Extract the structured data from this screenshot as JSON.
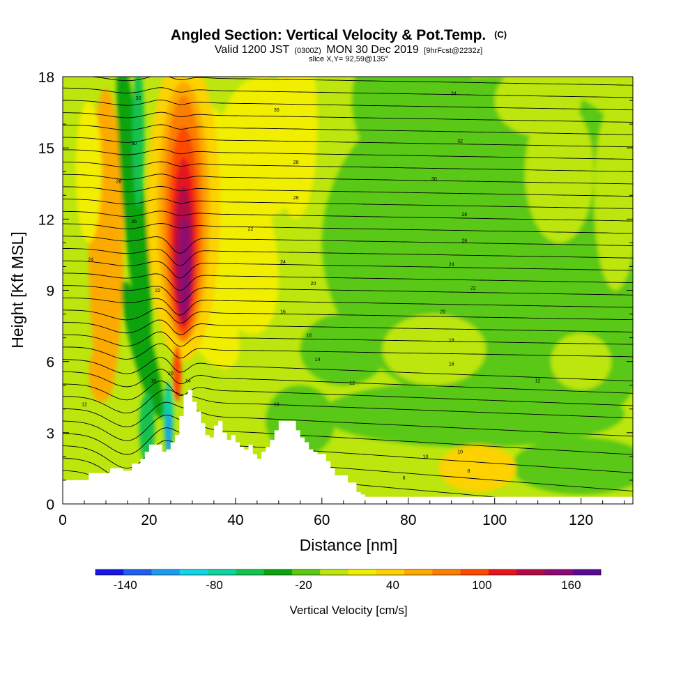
{
  "header": {
    "title": "Angled Section: Vertical Velocity & Pot.Temp.",
    "title_mark": "(C)",
    "valid_prefix": "Valid 1200 JST",
    "valid_utc": "(0300Z)",
    "valid_date": "MON 30 Dec 2019",
    "forecast": "[9hrFcst@2232z]",
    "slice": "slice X,Y= 92,59@135°"
  },
  "chart_data": {
    "type": "heatmap",
    "xlabel": "Distance [nm]",
    "ylabel": "Height [Kft MSL]",
    "xlim": [
      0,
      132
    ],
    "ylim": [
      0,
      18
    ],
    "x_ticks": [
      0,
      20,
      40,
      60,
      80,
      100,
      120
    ],
    "y_ticks": [
      0,
      3,
      6,
      9,
      12,
      15,
      18
    ],
    "colorbar": {
      "label": "Vertical Velocity [cm/s]",
      "tick_labels": [
        "-140",
        "-80",
        "-20",
        "40",
        "100",
        "160"
      ],
      "tick_values": [
        -140,
        -80,
        -20,
        40,
        100,
        160
      ],
      "bins": [
        -160,
        -140,
        -120,
        -100,
        -80,
        -60,
        -40,
        -20,
        0,
        20,
        40,
        60,
        80,
        100,
        120,
        140,
        160,
        180
      ],
      "colors": [
        "#1616e6",
        "#1f5ef0",
        "#1c9ced",
        "#12d6e6",
        "#10d29e",
        "#14c24e",
        "#0ea30e",
        "#5ac814",
        "#bce60e",
        "#f2ee00",
        "#fcd200",
        "#fcaa00",
        "#fc7e00",
        "#fc4a00",
        "#e6141e",
        "#b00c46",
        "#8c0a72",
        "#5a0a96"
      ]
    },
    "terrain": [
      [
        0,
        1
      ],
      [
        5,
        1
      ],
      [
        6,
        1.3
      ],
      [
        10,
        1.3
      ],
      [
        11,
        1.5
      ],
      [
        13,
        1.5
      ],
      [
        14,
        1.4
      ],
      [
        15,
        1.4
      ],
      [
        16,
        1.7
      ],
      [
        18,
        1.9
      ],
      [
        19,
        2.2
      ],
      [
        20,
        2.5
      ],
      [
        22,
        2.5
      ],
      [
        23,
        2.2
      ],
      [
        24,
        2.3
      ],
      [
        25,
        2.6
      ],
      [
        26,
        2.9
      ],
      [
        27,
        3.7
      ],
      [
        28,
        4.6
      ],
      [
        29,
        4.8
      ],
      [
        30,
        4.3
      ],
      [
        31,
        3.9
      ],
      [
        32,
        3.4
      ],
      [
        33,
        2.9
      ],
      [
        34,
        2.8
      ],
      [
        35,
        3.3
      ],
      [
        36,
        3.5
      ],
      [
        37,
        3.0
      ],
      [
        38,
        2.7
      ],
      [
        39,
        2.9
      ],
      [
        40,
        2.6
      ],
      [
        41,
        2.4
      ],
      [
        42,
        2.3
      ],
      [
        43,
        2.5
      ],
      [
        44,
        2.1
      ],
      [
        45,
        1.9
      ],
      [
        46,
        2.2
      ],
      [
        47,
        2.4
      ],
      [
        48,
        2.7
      ],
      [
        49,
        3.1
      ],
      [
        50,
        3.5
      ],
      [
        53,
        3.5
      ],
      [
        54,
        3.1
      ],
      [
        55,
        2.8
      ],
      [
        56,
        2.6
      ],
      [
        57,
        2.3
      ],
      [
        58,
        2.2
      ],
      [
        59,
        2.1
      ],
      [
        60,
        2.1
      ],
      [
        61,
        1.8
      ],
      [
        62,
        1.5
      ],
      [
        63,
        1.2
      ],
      [
        64,
        1.2
      ],
      [
        66,
        0.9
      ],
      [
        68,
        0.5
      ],
      [
        69,
        0.4
      ],
      [
        70,
        0.3
      ],
      [
        132,
        0.3
      ]
    ],
    "pot_temp_labels": [
      {
        "x": 17.5,
        "y": 17.1,
        "t": "32"
      },
      {
        "x": 16.5,
        "y": 15.2,
        "t": "30"
      },
      {
        "x": 13,
        "y": 13.6,
        "t": "28"
      },
      {
        "x": 16.5,
        "y": 11.9,
        "t": "26"
      },
      {
        "x": 6.5,
        "y": 10.3,
        "t": "24"
      },
      {
        "x": 22,
        "y": 9.0,
        "t": "22"
      },
      {
        "x": 21,
        "y": 5.2,
        "t": "18"
      },
      {
        "x": 25,
        "y": 5.5,
        "t": "20"
      },
      {
        "x": 29,
        "y": 5.2,
        "t": "14"
      },
      {
        "x": 5,
        "y": 4.2,
        "t": "12"
      },
      {
        "x": 49.5,
        "y": 16.6,
        "t": "30"
      },
      {
        "x": 54,
        "y": 14.4,
        "t": "28"
      },
      {
        "x": 54,
        "y": 12.9,
        "t": "26"
      },
      {
        "x": 43.5,
        "y": 11.6,
        "t": "22"
      },
      {
        "x": 51,
        "y": 10.2,
        "t": "24"
      },
      {
        "x": 58,
        "y": 9.3,
        "t": "20"
      },
      {
        "x": 51,
        "y": 8.1,
        "t": "16"
      },
      {
        "x": 57,
        "y": 7.1,
        "t": "16"
      },
      {
        "x": 59,
        "y": 6.1,
        "t": "14"
      },
      {
        "x": 67,
        "y": 5.1,
        "t": "12"
      },
      {
        "x": 49.5,
        "y": 4.2,
        "t": "10"
      },
      {
        "x": 90.5,
        "y": 17.3,
        "t": "34"
      },
      {
        "x": 92,
        "y": 15.3,
        "t": "32"
      },
      {
        "x": 86,
        "y": 13.7,
        "t": "30"
      },
      {
        "x": 93,
        "y": 12.2,
        "t": "28"
      },
      {
        "x": 93,
        "y": 11.1,
        "t": "26"
      },
      {
        "x": 90,
        "y": 10.1,
        "t": "24"
      },
      {
        "x": 95,
        "y": 9.1,
        "t": "22"
      },
      {
        "x": 88,
        "y": 8.1,
        "t": "20"
      },
      {
        "x": 90,
        "y": 6.9,
        "t": "18"
      },
      {
        "x": 90,
        "y": 5.9,
        "t": "16"
      },
      {
        "x": 110,
        "y": 5.2,
        "t": "12"
      },
      {
        "x": 84,
        "y": 2.0,
        "t": "10"
      },
      {
        "x": 92,
        "y": 2.2,
        "t": "10"
      },
      {
        "x": 94,
        "y": 1.4,
        "t": "8"
      },
      {
        "x": 79,
        "y": 1.1,
        "t": "6"
      }
    ]
  }
}
